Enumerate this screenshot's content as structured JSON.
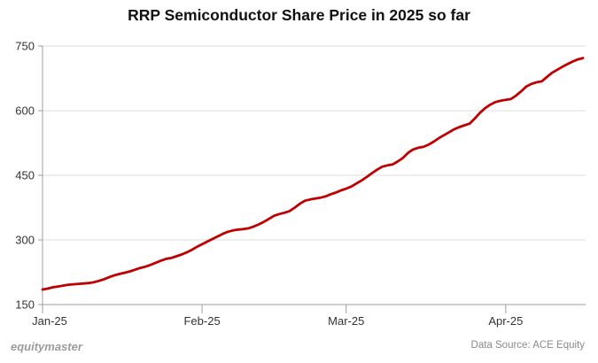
{
  "title": "RRP Semiconductor Share Price in 2025 so far",
  "footer": {
    "brand": "equitymaster",
    "source": "Data Source: ACE Equity"
  },
  "colors": {
    "line": "#c00000",
    "grid": "#dcdcdc",
    "axis": "#9e9e9e",
    "tick_text": "#333333",
    "title_text": "#111111",
    "brand_text": "#9b9b9b",
    "source_text": "#8a8a8a"
  },
  "chart_data": {
    "type": "line",
    "title": "RRP Semiconductor Share Price in 2025 so far",
    "xlabel": "",
    "ylabel": "",
    "x_tick_labels": [
      "Jan-25",
      "Feb-25",
      "Mar-25",
      "Apr-25"
    ],
    "x_tick_indices": [
      0,
      31,
      59,
      90
    ],
    "y_ticks": [
      150,
      300,
      450,
      600,
      750
    ],
    "ylim": [
      150,
      750
    ],
    "grid": "horizontal",
    "legend": "none",
    "series": [
      {
        "name": "Share Price",
        "values": [
          185,
          187,
          190,
          192,
          194,
          196,
          197,
          198,
          199,
          200,
          202,
          205,
          209,
          214,
          218,
          221,
          224,
          227,
          231,
          235,
          238,
          242,
          247,
          252,
          256,
          258,
          262,
          266,
          271,
          277,
          284,
          290,
          296,
          302,
          308,
          314,
          319,
          322,
          324,
          325,
          327,
          331,
          336,
          342,
          349,
          356,
          360,
          363,
          367,
          375,
          384,
          391,
          394,
          396,
          398,
          401,
          406,
          410,
          415,
          419,
          424,
          431,
          438,
          446,
          455,
          463,
          470,
          473,
          475,
          482,
          490,
          502,
          510,
          514,
          516,
          521,
          528,
          536,
          543,
          550,
          557,
          562,
          566,
          570,
          582,
          595,
          606,
          614,
          620,
          623,
          625,
          627,
          635,
          645,
          656,
          662,
          666,
          668,
          678,
          688,
          695,
          702,
          708,
          714,
          719,
          722
        ]
      }
    ]
  }
}
